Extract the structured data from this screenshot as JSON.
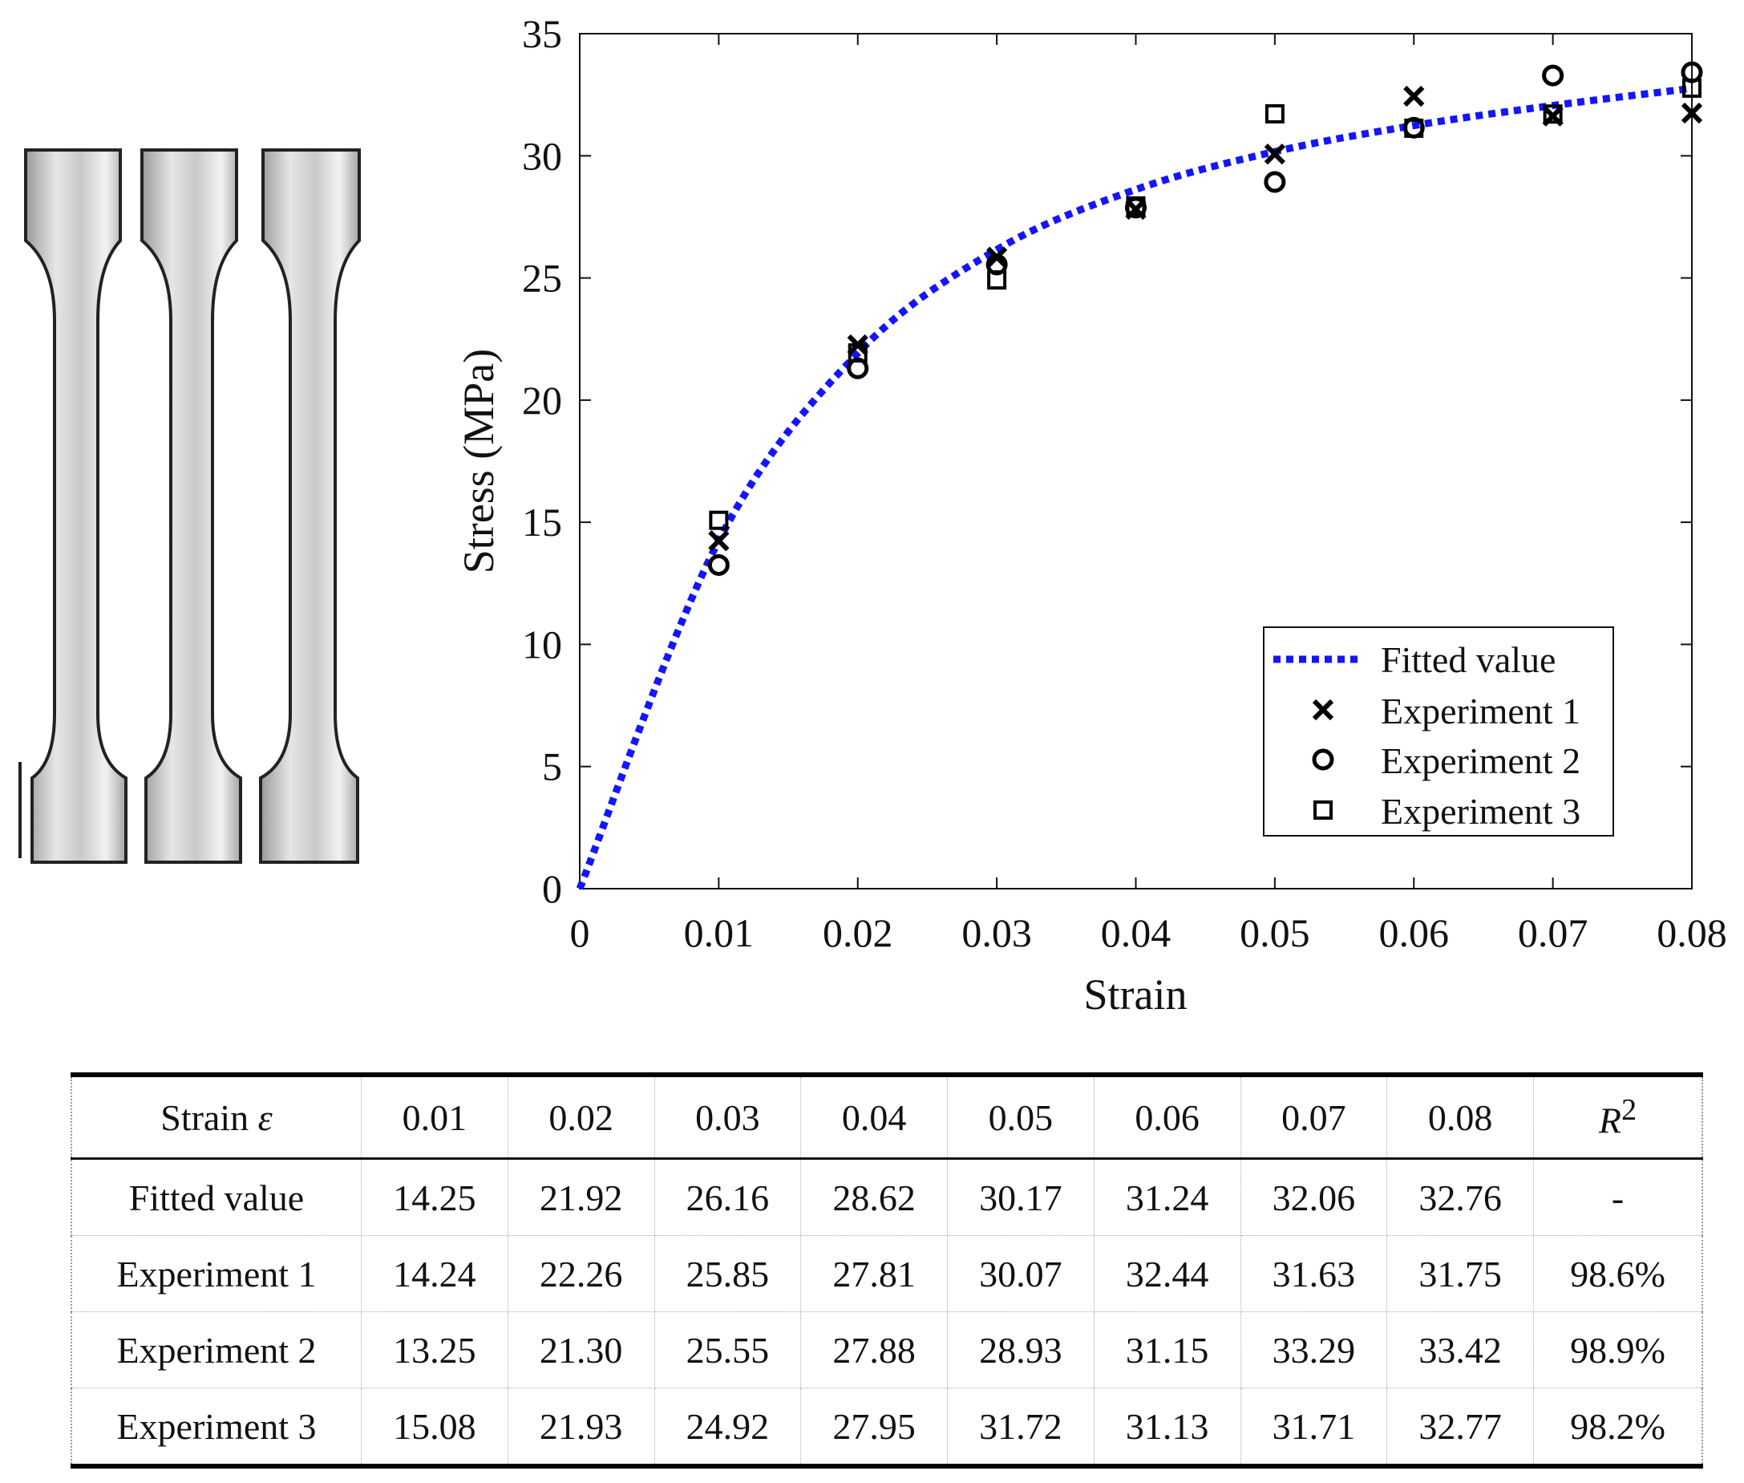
{
  "chart_data": {
    "type": "scatter",
    "xlabel": "Strain",
    "ylabel": "Stress (MPa)",
    "xlim": [
      0,
      0.08
    ],
    "ylim": [
      0,
      35
    ],
    "xticks": [
      "0",
      "0.01",
      "0.02",
      "0.03",
      "0.04",
      "0.05",
      "0.06",
      "0.07",
      "0.08"
    ],
    "yticks": [
      "0",
      "5",
      "10",
      "15",
      "20",
      "25",
      "30",
      "35"
    ],
    "grid": false,
    "legend_position": "bottom-right",
    "fit_curve": {
      "name": "Fitted value",
      "style": "dotted",
      "color": "#1414ff",
      "x": [
        0,
        0.01,
        0.02,
        0.03,
        0.04,
        0.05,
        0.06,
        0.07,
        0.08
      ],
      "y": [
        0,
        14.25,
        21.92,
        26.16,
        28.62,
        30.17,
        31.24,
        32.06,
        32.76
      ]
    },
    "series": [
      {
        "name": "Experiment 1",
        "marker": "x",
        "x": [
          0.01,
          0.02,
          0.03,
          0.04,
          0.05,
          0.06,
          0.07,
          0.08
        ],
        "y": [
          14.24,
          22.26,
          25.85,
          27.81,
          30.07,
          32.44,
          31.63,
          31.75
        ]
      },
      {
        "name": "Experiment 2",
        "marker": "circle",
        "x": [
          0.01,
          0.02,
          0.03,
          0.04,
          0.05,
          0.06,
          0.07,
          0.08
        ],
        "y": [
          13.25,
          21.3,
          25.55,
          27.88,
          28.93,
          31.15,
          33.29,
          33.42
        ]
      },
      {
        "name": "Experiment 3",
        "marker": "square",
        "x": [
          0.01,
          0.02,
          0.03,
          0.04,
          0.05,
          0.06,
          0.07,
          0.08
        ],
        "y": [
          15.08,
          21.93,
          24.92,
          27.95,
          31.72,
          31.13,
          31.71,
          32.77
        ]
      }
    ]
  },
  "table": {
    "header_label": "Strain",
    "header_symbol": "ε",
    "columns": [
      "0.01",
      "0.02",
      "0.03",
      "0.04",
      "0.05",
      "0.06",
      "0.07",
      "0.08"
    ],
    "r2_label": "R",
    "r2_sup": "2",
    "rows": [
      {
        "label": "Fitted value",
        "cells": [
          "14.25",
          "21.92",
          "26.16",
          "28.62",
          "30.17",
          "31.24",
          "32.06",
          "32.76",
          "-"
        ]
      },
      {
        "label": "Experiment 1",
        "cells": [
          "14.24",
          "22.26",
          "25.85",
          "27.81",
          "30.07",
          "32.44",
          "31.63",
          "31.75",
          "98.6%"
        ]
      },
      {
        "label": "Experiment 2",
        "cells": [
          "13.25",
          "21.30",
          "25.55",
          "27.88",
          "28.93",
          "31.15",
          "33.29",
          "33.42",
          "98.9%"
        ]
      },
      {
        "label": "Experiment 3",
        "cells": [
          "15.08",
          "21.93",
          "24.92",
          "27.95",
          "31.72",
          "31.13",
          "31.71",
          "32.77",
          "98.2%"
        ]
      }
    ]
  }
}
